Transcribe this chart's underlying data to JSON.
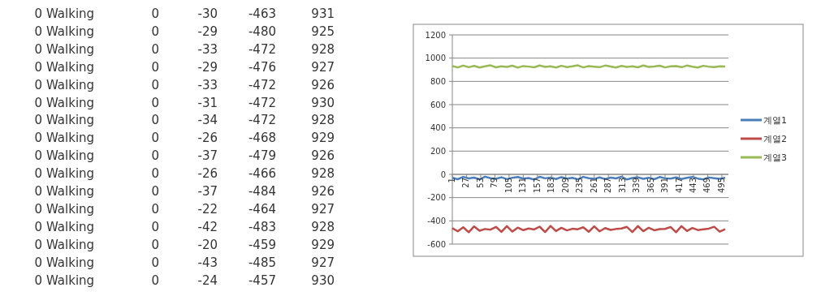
{
  "chart_data": [
    {
      "type": "other",
      "annotations": [
        "0",
        "Walking",
        "0",
        "-30",
        "-463",
        "931",
        "0",
        "Walking",
        "0",
        "-29",
        "-480",
        "925",
        "0",
        "Walking",
        "0",
        "-33",
        "-472",
        "928",
        "0",
        "Walking",
        "0",
        "-29",
        "-476",
        "927",
        "0",
        "Walking",
        "0",
        "-33",
        "-472",
        "926",
        "0",
        "Walking",
        "0",
        "-31",
        "-472",
        "930",
        "0",
        "Walking",
        "0",
        "-34",
        "-472",
        "928",
        "0",
        "Walking",
        "0",
        "-26",
        "-468",
        "929",
        "0",
        "Walking",
        "0",
        "-37",
        "-479",
        "926",
        "0",
        "Walking",
        "0",
        "-26",
        "-466",
        "928",
        "0",
        "Walking",
        "0",
        "-37",
        "-484",
        "926",
        "0",
        "Walking",
        "0",
        "-22",
        "-464",
        "927",
        "0",
        "Walking",
        "0",
        "-42",
        "-483",
        "928",
        "0",
        "Walking",
        "0",
        "-20",
        "-459",
        "929",
        "0",
        "Walking",
        "0",
        "-43",
        "-485",
        "927",
        "0",
        "Walking",
        "0",
        "-24",
        "-457",
        "930"
      ]
    },
    {
      "type": "line",
      "x": [
        1,
        11,
        21,
        31,
        41,
        51,
        61,
        71,
        81,
        91,
        101,
        111,
        121,
        131,
        141,
        151,
        161,
        171,
        181,
        191,
        201,
        211,
        221,
        231,
        241,
        251,
        261,
        271,
        281,
        291,
        301,
        311,
        321,
        331,
        341,
        351,
        361,
        371,
        381,
        391,
        401,
        411,
        421,
        431,
        441,
        451,
        461,
        471,
        481,
        491,
        501
      ],
      "xlim": [
        1,
        507
      ],
      "xticks": [
        1,
        27,
        53,
        79,
        105,
        131,
        157,
        183,
        209,
        235,
        261,
        287,
        313,
        339,
        365,
        391,
        417,
        443,
        469,
        495
      ],
      "ylim": [
        -600,
        1200
      ],
      "yticks": [
        -600,
        -400,
        -200,
        0,
        200,
        400,
        600,
        800,
        1000,
        1200
      ],
      "grid": "y",
      "legend": "right",
      "marker": "none",
      "series": [
        {
          "name": "계열1",
          "color": "#4a7ebb",
          "values": [
            -30,
            -42,
            -22,
            -35,
            -28,
            -44,
            -20,
            -33,
            -38,
            -25,
            -41,
            -29,
            -23,
            -37,
            -31,
            -45,
            -21,
            -34,
            -27,
            -40,
            -24,
            -36,
            -30,
            -43,
            -22,
            -33,
            -39,
            -26,
            -41,
            -28,
            -35,
            -20,
            -44,
            -31,
            -25,
            -38,
            -29,
            -42,
            -23,
            -34,
            -37,
            -26,
            -40,
            -30,
            -22,
            -36,
            -43,
            -27,
            -33,
            -39,
            -29
          ]
        },
        {
          "name": "계열2",
          "color": "#be4b48",
          "values": [
            -463,
            -490,
            -455,
            -498,
            -448,
            -485,
            -470,
            -476,
            -452,
            -495,
            -446,
            -492,
            -458,
            -480,
            -466,
            -474,
            -450,
            -497,
            -444,
            -488,
            -460,
            -482,
            -468,
            -472,
            -455,
            -494,
            -447,
            -490,
            -462,
            -478,
            -470,
            -466,
            -452,
            -496,
            -445,
            -489,
            -459,
            -481,
            -471,
            -469,
            -453,
            -498,
            -446,
            -487,
            -461,
            -479,
            -473,
            -467,
            -451,
            -493,
            -472
          ]
        },
        {
          "name": "계열3",
          "color": "#98b954",
          "values": [
            931,
            920,
            936,
            922,
            933,
            919,
            929,
            938,
            921,
            930,
            924,
            935,
            918,
            932,
            927,
            921,
            937,
            925,
            930,
            919,
            934,
            923,
            929,
            938,
            920,
            931,
            926,
            922,
            936,
            928,
            919,
            933,
            925,
            930,
            921,
            937,
            924,
            928,
            935,
            920,
            929,
            932,
            922,
            936,
            926,
            919,
            934,
            927,
            923,
            930,
            928
          ]
        }
      ]
    }
  ]
}
